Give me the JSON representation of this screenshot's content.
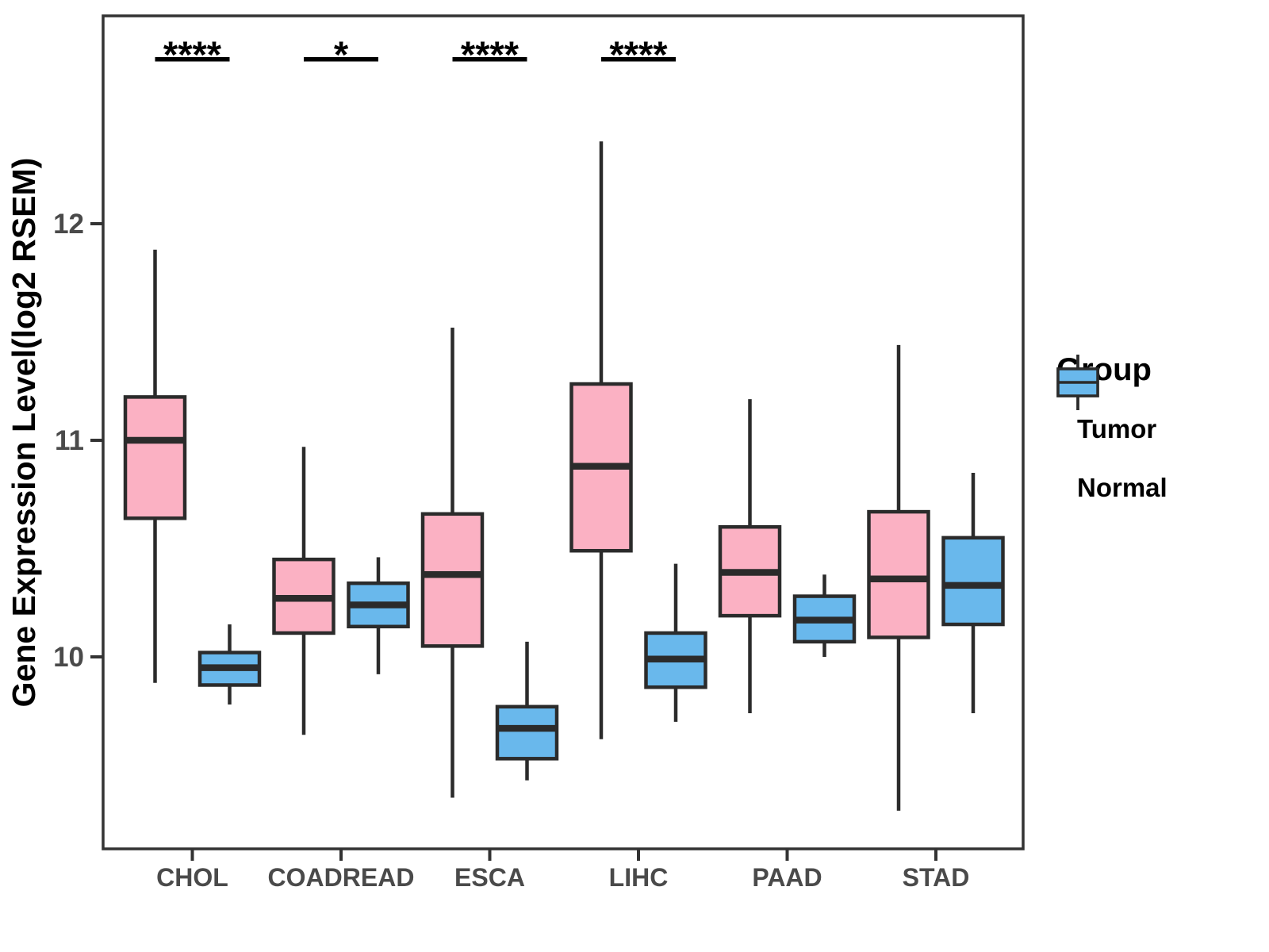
{
  "chart_data": {
    "type": "boxplot",
    "title": "",
    "xlabel": "",
    "ylabel": "Gene Expression Level(log2 RSEM)",
    "categories": [
      "CHOL",
      "COADREAD",
      "ESCA",
      "LIHC",
      "PAAD",
      "STAD"
    ],
    "y_ticks": [
      "10",
      "11",
      "12"
    ],
    "y_tick_values": [
      10,
      11,
      12
    ],
    "ylim": [
      9.11,
      12.96
    ],
    "grid": "off",
    "legend_position": "right",
    "series": [
      {
        "name": "Tumor",
        "color": "#FBB1C3",
        "boxes": [
          {
            "category": "CHOL",
            "whisker_low": 9.88,
            "q1": 10.64,
            "median": 11.0,
            "q3": 11.2,
            "whisker_high": 11.88
          },
          {
            "category": "COADREAD",
            "whisker_low": 9.64,
            "q1": 10.11,
            "median": 10.27,
            "q3": 10.45,
            "whisker_high": 10.97
          },
          {
            "category": "ESCA",
            "whisker_low": 9.35,
            "q1": 10.05,
            "median": 10.38,
            "q3": 10.66,
            "whisker_high": 11.52
          },
          {
            "category": "LIHC",
            "whisker_low": 9.62,
            "q1": 10.49,
            "median": 10.88,
            "q3": 11.26,
            "whisker_high": 12.38
          },
          {
            "category": "PAAD",
            "whisker_low": 9.74,
            "q1": 10.19,
            "median": 10.39,
            "q3": 10.6,
            "whisker_high": 11.19
          },
          {
            "category": "STAD",
            "whisker_low": 9.29,
            "q1": 10.09,
            "median": 10.36,
            "q3": 10.67,
            "whisker_high": 11.44
          }
        ]
      },
      {
        "name": "Normal",
        "color": "#69B8EC",
        "boxes": [
          {
            "category": "CHOL",
            "whisker_low": 9.78,
            "q1": 9.87,
            "median": 9.95,
            "q3": 10.02,
            "whisker_high": 10.15
          },
          {
            "category": "COADREAD",
            "whisker_low": 9.92,
            "q1": 10.14,
            "median": 10.24,
            "q3": 10.34,
            "whisker_high": 10.46
          },
          {
            "category": "ESCA",
            "whisker_low": 9.43,
            "q1": 9.53,
            "median": 9.67,
            "q3": 9.77,
            "whisker_high": 10.07
          },
          {
            "category": "LIHC",
            "whisker_low": 9.7,
            "q1": 9.86,
            "median": 9.99,
            "q3": 10.11,
            "whisker_high": 10.43
          },
          {
            "category": "PAAD",
            "whisker_low": 10.0,
            "q1": 10.07,
            "median": 10.17,
            "q3": 10.28,
            "whisker_high": 10.38
          },
          {
            "category": "STAD",
            "whisker_low": 9.74,
            "q1": 10.15,
            "median": 10.33,
            "q3": 10.55,
            "whisker_high": 10.85
          }
        ]
      }
    ],
    "significance": [
      {
        "category": "CHOL",
        "label": "****"
      },
      {
        "category": "COADREAD",
        "label": "*"
      },
      {
        "category": "ESCA",
        "label": "****"
      },
      {
        "category": "LIHC",
        "label": "****"
      }
    ],
    "legend": {
      "title": "Group",
      "items": [
        {
          "label": "Tumor",
          "color": "#FBB1C3"
        },
        {
          "label": "Normal",
          "color": "#69B8EC"
        }
      ]
    },
    "colors": {
      "box_stroke": "#2B2B2B",
      "panel_border": "#333333",
      "tick_label": "#4A4A4A",
      "axis_title": "#000000",
      "significance": "#000000"
    }
  }
}
